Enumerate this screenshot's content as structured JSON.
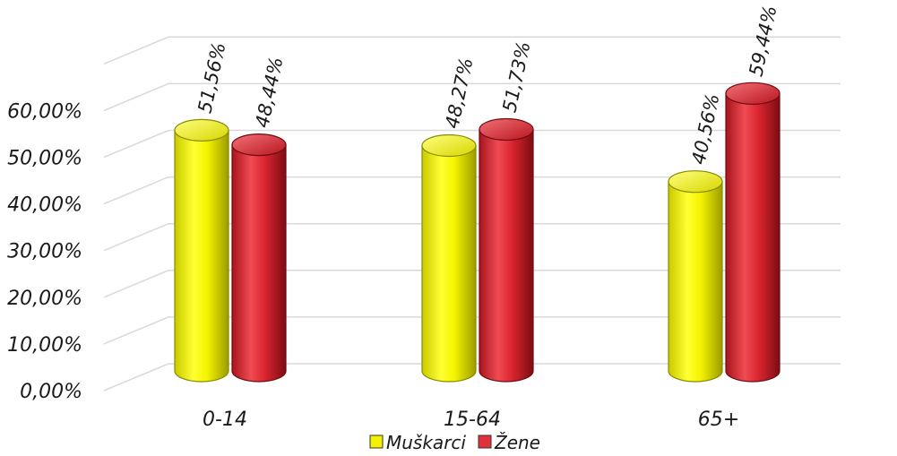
{
  "chart_data": {
    "type": "bar",
    "categories": [
      "0-14",
      "15-64",
      "65+"
    ],
    "series": [
      {
        "name": "Muškarci",
        "values": [
          51.56,
          48.27,
          40.56
        ],
        "labels": [
          "51,56%",
          "48,27%",
          "40,56%"
        ],
        "color": "#f2f200"
      },
      {
        "name": "Žene",
        "values": [
          48.44,
          51.73,
          59.44
        ],
        "labels": [
          "48,44%",
          "51,73%",
          "59,44%"
        ],
        "color": "#e0303a"
      }
    ],
    "yticks": [
      "0,00%",
      "10,00%",
      "20,00%",
      "30,00%",
      "40,00%",
      "50,00%",
      "60,00%"
    ],
    "ylim": [
      0,
      70
    ],
    "grid": true,
    "legend_position": "bottom",
    "style": "3d-cylinder"
  }
}
